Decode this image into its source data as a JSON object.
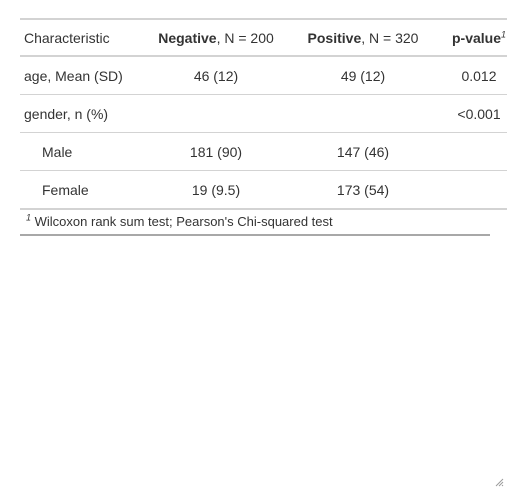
{
  "table": {
    "header": {
      "characteristic": "Characteristic",
      "negative_name": "Negative",
      "negative_n": ", N = 200",
      "positive_name": "Positive",
      "positive_n": ", N = 320",
      "pvalue": "p-value",
      "pvalue_mark": "1"
    },
    "rows": [
      {
        "label": "age, Mean (SD)",
        "negative": "46 (12)",
        "positive": "49 (12)",
        "pvalue": "0.012"
      },
      {
        "label": "gender, n (%)",
        "negative": "",
        "positive": "",
        "pvalue": "<0.001"
      },
      {
        "label": "Male",
        "negative": "181 (90)",
        "positive": "147 (46)",
        "pvalue": ""
      },
      {
        "label": "Female",
        "negative": "19 (9.5)",
        "positive": "173 (54)",
        "pvalue": ""
      }
    ],
    "footnote": {
      "mark": "1",
      "text": "Wilcoxon rank sum test; Pearson's Chi-squared test"
    }
  },
  "icons": {
    "resize": "resize-grip-icon"
  },
  "colors": {
    "rule": "#d3d3d3",
    "bottom_rule": "#a8a8a8",
    "text": "#333333"
  }
}
